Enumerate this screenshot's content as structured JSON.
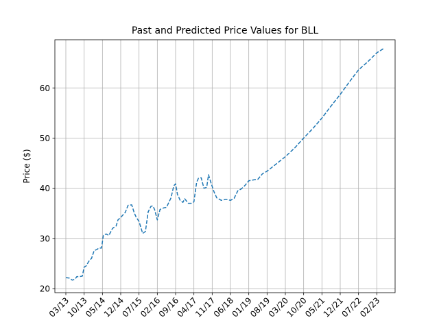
{
  "chart_data": {
    "type": "line",
    "title": "Past and Predicted Price Values for BLL",
    "xlabel": "",
    "ylabel": "Price ($)",
    "grid": true,
    "x_tick_labels": [
      "03/13",
      "10/13",
      "05/14",
      "12/14",
      "07/15",
      "02/16",
      "09/16",
      "04/17",
      "11/17",
      "06/18",
      "01/19",
      "08/19",
      "03/20",
      "10/20",
      "05/21",
      "12/21",
      "07/22",
      "02/23"
    ],
    "y_ticks": [
      20,
      30,
      40,
      50,
      60
    ],
    "xlim": [
      -0.6,
      18.0
    ],
    "ylim": [
      19.2,
      69.6
    ],
    "series": [
      {
        "color": "#1f77b4",
        "style": "dashed",
        "x": [
          0.0,
          0.2,
          0.35,
          0.5,
          0.6,
          0.75,
          0.9,
          1.0,
          1.1,
          1.3,
          1.4,
          1.55,
          1.7,
          1.8,
          1.95,
          2.05,
          2.2,
          2.35,
          2.55,
          2.75,
          2.85,
          3.0,
          3.25,
          3.4,
          3.6,
          3.75,
          3.85,
          4.0,
          4.2,
          4.35,
          4.5,
          4.65,
          4.75,
          4.85,
          5.0,
          5.15,
          5.25,
          5.35,
          5.5,
          5.75,
          5.9,
          6.0,
          6.1,
          6.25,
          6.4,
          6.5,
          6.7,
          6.85,
          7.0,
          7.15,
          7.25,
          7.4,
          7.55,
          7.7,
          7.8,
          7.95,
          8.1,
          8.25,
          8.5,
          8.75,
          9.0,
          9.2,
          9.4,
          9.6,
          9.8,
          10.0,
          10.3,
          10.5,
          10.75,
          11.0,
          12.0,
          12.5,
          13.0,
          13.5,
          14.0,
          14.5,
          15.0,
          15.5,
          16.0,
          16.5,
          17.0,
          17.35
        ],
        "y": [
          22.2,
          22.1,
          21.7,
          21.9,
          22.4,
          22.4,
          22.5,
          24.3,
          24.5,
          25.7,
          26.0,
          27.6,
          27.8,
          28.1,
          28.1,
          30.6,
          30.9,
          30.6,
          32.0,
          32.5,
          33.7,
          34.2,
          35.2,
          36.6,
          36.7,
          35.0,
          34.2,
          33.4,
          31.0,
          31.4,
          35.3,
          36.4,
          36.5,
          35.8,
          33.7,
          35.8,
          35.9,
          36.1,
          36.2,
          38.1,
          40.5,
          40.9,
          38.8,
          37.6,
          37.2,
          37.9,
          37.0,
          37.0,
          37.3,
          41.2,
          42.0,
          42.1,
          40.0,
          40.2,
          42.7,
          40.9,
          39.3,
          38.1,
          37.6,
          37.8,
          37.6,
          38.0,
          39.5,
          39.9,
          40.6,
          41.5,
          41.7,
          41.8,
          42.9,
          43.4,
          46.3,
          48.0,
          50.0,
          51.9,
          54.0,
          56.4,
          58.7,
          61.2,
          63.6,
          65.2,
          67.0,
          67.8
        ]
      }
    ]
  }
}
